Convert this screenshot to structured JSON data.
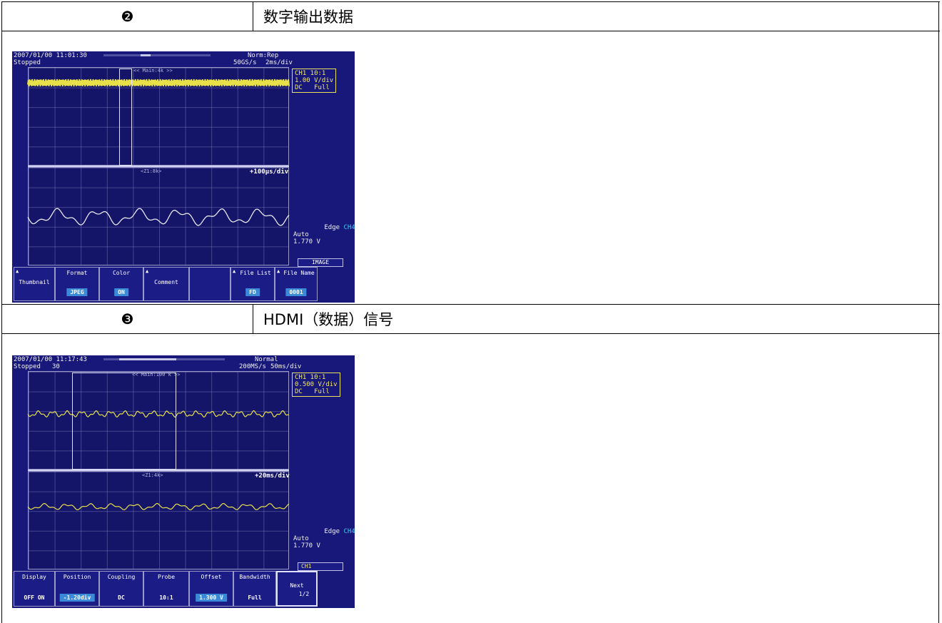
{
  "sections": [
    {
      "number": "❷",
      "title": "数字输出数据",
      "scope": {
        "timestamp": "2007/01/00 11:01:30",
        "state": "Stopped",
        "trigger_mode": "Norm:Rep",
        "sample_rate": "50GS/s",
        "timebase": "2ms/div",
        "main_label": "<< Main:4k >>",
        "zoom_label": "<Z1:8k>",
        "zoom_timebase": "+100μs/div",
        "ch_info": "CH1 10:1\n1.00 V/div\nDC   Full",
        "trigger_info": [
          "Edge",
          "CH4",
          "⨍",
          "Auto",
          "1.770 V"
        ],
        "side_label": "IMAGE",
        "menu": [
          {
            "label": "Thumbnail",
            "value": ""
          },
          {
            "label": "Format",
            "value": "JPEG"
          },
          {
            "label": "Color",
            "value": "ON"
          },
          {
            "label": "Comment",
            "value": ""
          },
          {
            "label": "",
            "value": ""
          },
          {
            "label": "File List",
            "value": "FD"
          },
          {
            "label": "File Name",
            "value": "0001"
          }
        ]
      }
    },
    {
      "number": "❸",
      "title": "HDMI（数据）信号",
      "scope": {
        "timestamp": "2007/01/00 11:17:43",
        "state": "Stopped",
        "count": "30",
        "trigger_mode": "Normal",
        "sample_rate": "200MS/s",
        "timebase": "50ms/div",
        "main_label": "<< Main:100 k >>",
        "zoom_label": "<Z1:4k>",
        "zoom_timebase": "+20ms/div",
        "ch_info": "CH1 10:1\n0.500 V/div\nDC   Full",
        "trigger_info": [
          "Edge",
          "CH4",
          "⨍",
          "Auto",
          "1.770 V"
        ],
        "side_label": "CH1",
        "menu": [
          {
            "label": "Display",
            "value": "OFF  ON"
          },
          {
            "label": "Position",
            "value": "-1.20div"
          },
          {
            "label": "Coupling",
            "value": "DC"
          },
          {
            "label": "Probe",
            "value": "10:1"
          },
          {
            "label": "Offset",
            "value": "1.300 V"
          },
          {
            "label": "Bandwidth",
            "value": "Full"
          }
        ],
        "next_label": "Next",
        "next_page": "1/2"
      }
    }
  ]
}
